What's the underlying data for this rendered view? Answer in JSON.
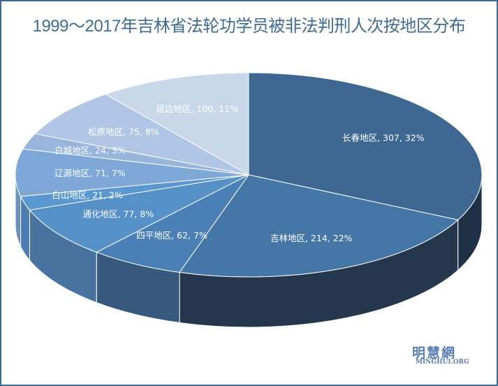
{
  "chart_data": {
    "type": "pie",
    "title": "1999～2017年吉林省法轮功学员被非法判刑人次按地区分布",
    "slices": [
      {
        "label": "长春地区",
        "value": 307,
        "percent": "32%",
        "color": "#3e6792",
        "side": "#1f3146"
      },
      {
        "label": "吉林地区",
        "value": 214,
        "percent": "22%",
        "color": "#4577a6",
        "side": "#24374c"
      },
      {
        "label": "四平地区",
        "value": 62,
        "percent": "7%",
        "color": "#4a80b6",
        "side": "#36597d"
      },
      {
        "label": "通化地区",
        "value": 77,
        "percent": "8%",
        "color": "#5590c6",
        "side": "#4873a0"
      },
      {
        "label": "白山地区",
        "value": 21,
        "percent": "2%",
        "color": "#5b98d2",
        "side": "#4d7db0"
      },
      {
        "label": "辽源地区",
        "value": 71,
        "percent": "7%",
        "color": "#7ea8d7",
        "side": "#6d93bd"
      },
      {
        "label": "白城地区",
        "value": 24,
        "percent": "3%",
        "color": "#98b5dc",
        "side": "#849fc4"
      },
      {
        "label": "松原地区",
        "value": 75,
        "percent": "8%",
        "color": "#b1c6e4",
        "side": "#9bb0cc"
      },
      {
        "label": "延边地区",
        "value": 100,
        "percent": "11%",
        "color": "#c9d7eb",
        "side": "#aebfd6"
      }
    ],
    "start": "top",
    "direction": "clockwise",
    "legend": "none"
  },
  "watermark": {
    "cn": "明慧網",
    "en": "MINGHUI.ORG"
  }
}
